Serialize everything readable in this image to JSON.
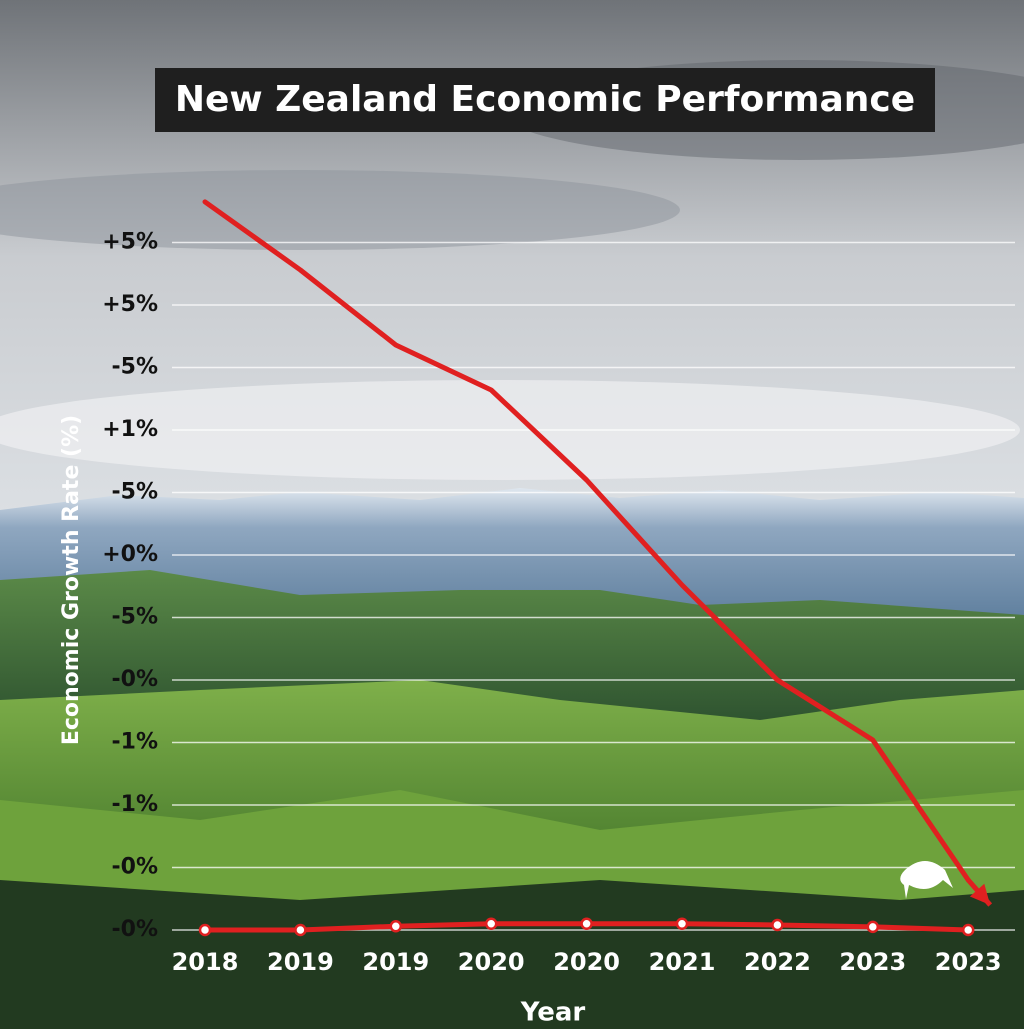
{
  "chart_data": {
    "type": "line",
    "title": "New Zealand Economic Performance",
    "x_label": "Year",
    "y_label": "Economic Growth Rate (%)",
    "categories": [
      "2018",
      "2019",
      "2019",
      "2020",
      "2020",
      "2021",
      "2022",
      "2023",
      "2023"
    ],
    "series": [
      {
        "color": "#e02020",
        "values": [
          11.65,
          10.56,
          9.36,
          8.64,
          7.2,
          5.52,
          4.0,
          3.04,
          0.8
        ],
        "arrow": true
      },
      {
        "color": "#e02020",
        "values": [
          0,
          0,
          0.06,
          0.1,
          0.1,
          0.1,
          0.08,
          0.05,
          0
        ],
        "markers": true
      }
    ],
    "ylim": [
      0,
      12
    ],
    "yticks": [
      {
        "value": 11,
        "label": "+5%"
      },
      {
        "value": 10,
        "label": "+5%"
      },
      {
        "value": 9,
        "label": "-5%"
      },
      {
        "value": 8,
        "label": "+1%"
      },
      {
        "value": 7,
        "label": "-5%"
      },
      {
        "value": 6,
        "label": "+0%"
      },
      {
        "value": 5,
        "label": "-5%"
      },
      {
        "value": 4,
        "label": "-0%"
      },
      {
        "value": 3,
        "label": "-1%"
      },
      {
        "value": 2,
        "label": "-1%"
      },
      {
        "value": 1,
        "label": "-0%"
      },
      {
        "value": 0,
        "label": "-0%"
      }
    ],
    "grid": true
  }
}
